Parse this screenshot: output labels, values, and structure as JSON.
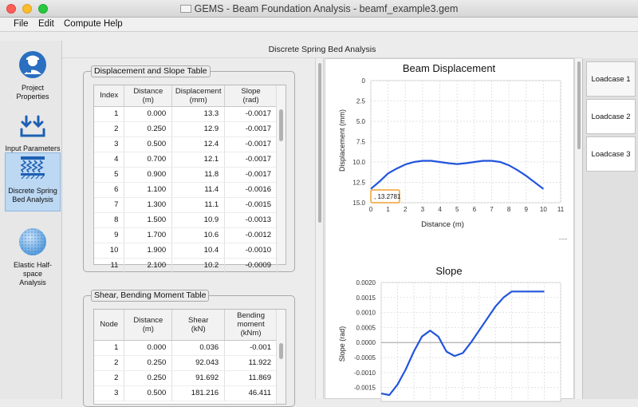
{
  "window": {
    "title": "GEMS - Beam Foundation Analysis - beamf_example3.gem"
  },
  "menu": [
    "File",
    "Edit",
    "Compute",
    "Help"
  ],
  "sidebar": {
    "items": [
      {
        "label_line1": "Project Properties",
        "label_line2": "",
        "icon": "engineer-icon",
        "active": false
      },
      {
        "label_line1": "Input Parameters",
        "label_line2": "",
        "icon": "download-arrows-icon",
        "active": false
      },
      {
        "label_line1": "Discrete Spring",
        "label_line2": "Bed Analysis",
        "icon": "spring-bed-icon",
        "active": true
      },
      {
        "label_line1": "Elastic Half-space",
        "label_line2": "Analysis",
        "icon": "halfspace-sphere-icon",
        "active": false
      }
    ]
  },
  "page_title": "Discrete Spring Bed Analysis",
  "displacement_table": {
    "group_title": "Displacement and Slope Table",
    "columns": [
      {
        "line1": "Index",
        "line2": ""
      },
      {
        "line1": "Distance",
        "line2": "(m)"
      },
      {
        "line1": "Displacement",
        "line2": "(mm)"
      },
      {
        "line1": "Slope",
        "line2": "(rad)"
      }
    ],
    "rows": [
      [
        "1",
        "0.000",
        "13.3",
        "-0.0017"
      ],
      [
        "2",
        "0.250",
        "12.9",
        "-0.0017"
      ],
      [
        "3",
        "0.500",
        "12.4",
        "-0.0017"
      ],
      [
        "4",
        "0.700",
        "12.1",
        "-0.0017"
      ],
      [
        "5",
        "0.900",
        "11.8",
        "-0.0017"
      ],
      [
        "6",
        "1.100",
        "11.4",
        "-0.0016"
      ],
      [
        "7",
        "1.300",
        "11.1",
        "-0.0015"
      ],
      [
        "8",
        "1.500",
        "10.9",
        "-0.0013"
      ],
      [
        "9",
        "1.700",
        "10.6",
        "-0.0012"
      ],
      [
        "10",
        "1.900",
        "10.4",
        "-0.0010"
      ],
      [
        "11",
        "2.100",
        "10.2",
        "-0.0009"
      ]
    ]
  },
  "shear_table": {
    "group_title": "Shear, Bending Moment Table",
    "columns": [
      {
        "line1": "Node",
        "line2": "",
        "line3": ""
      },
      {
        "line1": "Distance",
        "line2": "(m)",
        "line3": ""
      },
      {
        "line1": "Shear",
        "line2": "(kN)",
        "line3": ""
      },
      {
        "line1": "Bending",
        "line2": "moment",
        "line3": "(kNm)"
      }
    ],
    "rows": [
      [
        "1",
        "0.000",
        "0.036",
        "-0.001"
      ],
      [
        "2",
        "0.250",
        "92.043",
        "11.922"
      ],
      [
        "2",
        "0.250",
        "91.692",
        "11.869"
      ],
      [
        "3",
        "0.500",
        "181.216",
        "46.411"
      ]
    ]
  },
  "loadcase_tabs": [
    "Loadcase 1",
    "Loadcase 2",
    "Loadcase 3"
  ],
  "chart_data": [
    {
      "type": "line",
      "title": "Beam Displacement",
      "xlabel": "Distance  (m)",
      "ylabel": "Displacement  (mm)",
      "xlim": [
        0,
        11
      ],
      "ylim": [
        15.0,
        0
      ],
      "y_inverted": true,
      "xticks": [
        "0",
        "1",
        "2",
        "3",
        "4",
        "5",
        "6",
        "7",
        "8",
        "9",
        "10",
        "11"
      ],
      "yticks": [
        "0",
        "2.5",
        "5.0",
        "7.5",
        "10.0",
        "12.5",
        "15.0"
      ],
      "grid": true,
      "series": [
        {
          "color": "#2255dd",
          "x": [
            0,
            0.5,
            1,
            1.5,
            2,
            2.5,
            3,
            3.5,
            4,
            4.5,
            5,
            5.5,
            6,
            6.5,
            7,
            7.5,
            8,
            8.5,
            9,
            9.5,
            10
          ],
          "y": [
            13.3,
            12.4,
            11.4,
            10.8,
            10.3,
            10.0,
            9.85,
            9.85,
            10.0,
            10.15,
            10.25,
            10.15,
            10.0,
            9.85,
            9.85,
            10.0,
            10.4,
            11.0,
            11.7,
            12.5,
            13.3
          ]
        }
      ],
      "annotation": ", 13.2781",
      "annotation_color": "#f0a030"
    },
    {
      "type": "line",
      "title": "Slope",
      "xlabel": "",
      "ylabel": "Slope  (rad)",
      "ylim": [
        -0.0017,
        0.002
      ],
      "yticks": [
        "0.0020",
        "0.0015",
        "0.0010",
        "0.0005",
        "0.0000",
        "-0.0005",
        "-0.0010",
        "-0.0015"
      ],
      "grid": true,
      "series": [
        {
          "color": "#2255dd",
          "x": [
            0,
            0.5,
            1,
            1.5,
            2,
            2.5,
            3,
            3.5,
            4,
            4.5,
            5,
            5.5,
            6,
            6.5,
            7,
            7.5,
            8,
            8.5,
            9,
            9.5,
            10
          ],
          "y": [
            -0.0017,
            -0.00175,
            -0.0014,
            -0.0009,
            -0.0003,
            0.0002,
            0.0004,
            0.0002,
            -0.0003,
            -0.00045,
            -0.00035,
            0.0,
            0.0004,
            0.0008,
            0.0012,
            0.0015,
            0.0017,
            0.0017,
            0.0017,
            0.0017,
            0.0017
          ]
        }
      ]
    }
  ]
}
